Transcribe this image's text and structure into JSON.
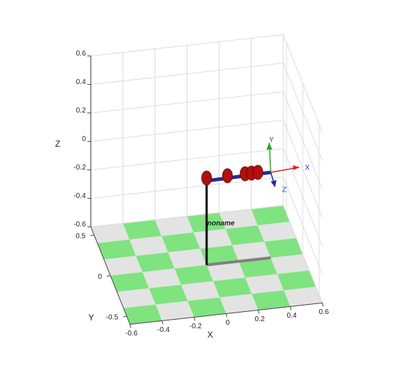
{
  "chart_data": {
    "type": "robot3d",
    "xlabel": "X",
    "ylabel": "Y",
    "zlabel": "Z",
    "xlim": [
      -0.6,
      0.6
    ],
    "ylim": [
      -0.6,
      0.6
    ],
    "zlim": [
      -0.6,
      0.6
    ],
    "xticks": [
      -0.6,
      -0.4,
      -0.2,
      0,
      0.2,
      0.4,
      0.6
    ],
    "yticks": [
      -0.5,
      0,
      0.5
    ],
    "zticks": [
      -0.6,
      -0.4,
      -0.2,
      0,
      0.2,
      0.4,
      0.6
    ],
    "grid": true,
    "robot_name": "noname",
    "frame_labels": [
      "X",
      "Y",
      "Z"
    ]
  }
}
